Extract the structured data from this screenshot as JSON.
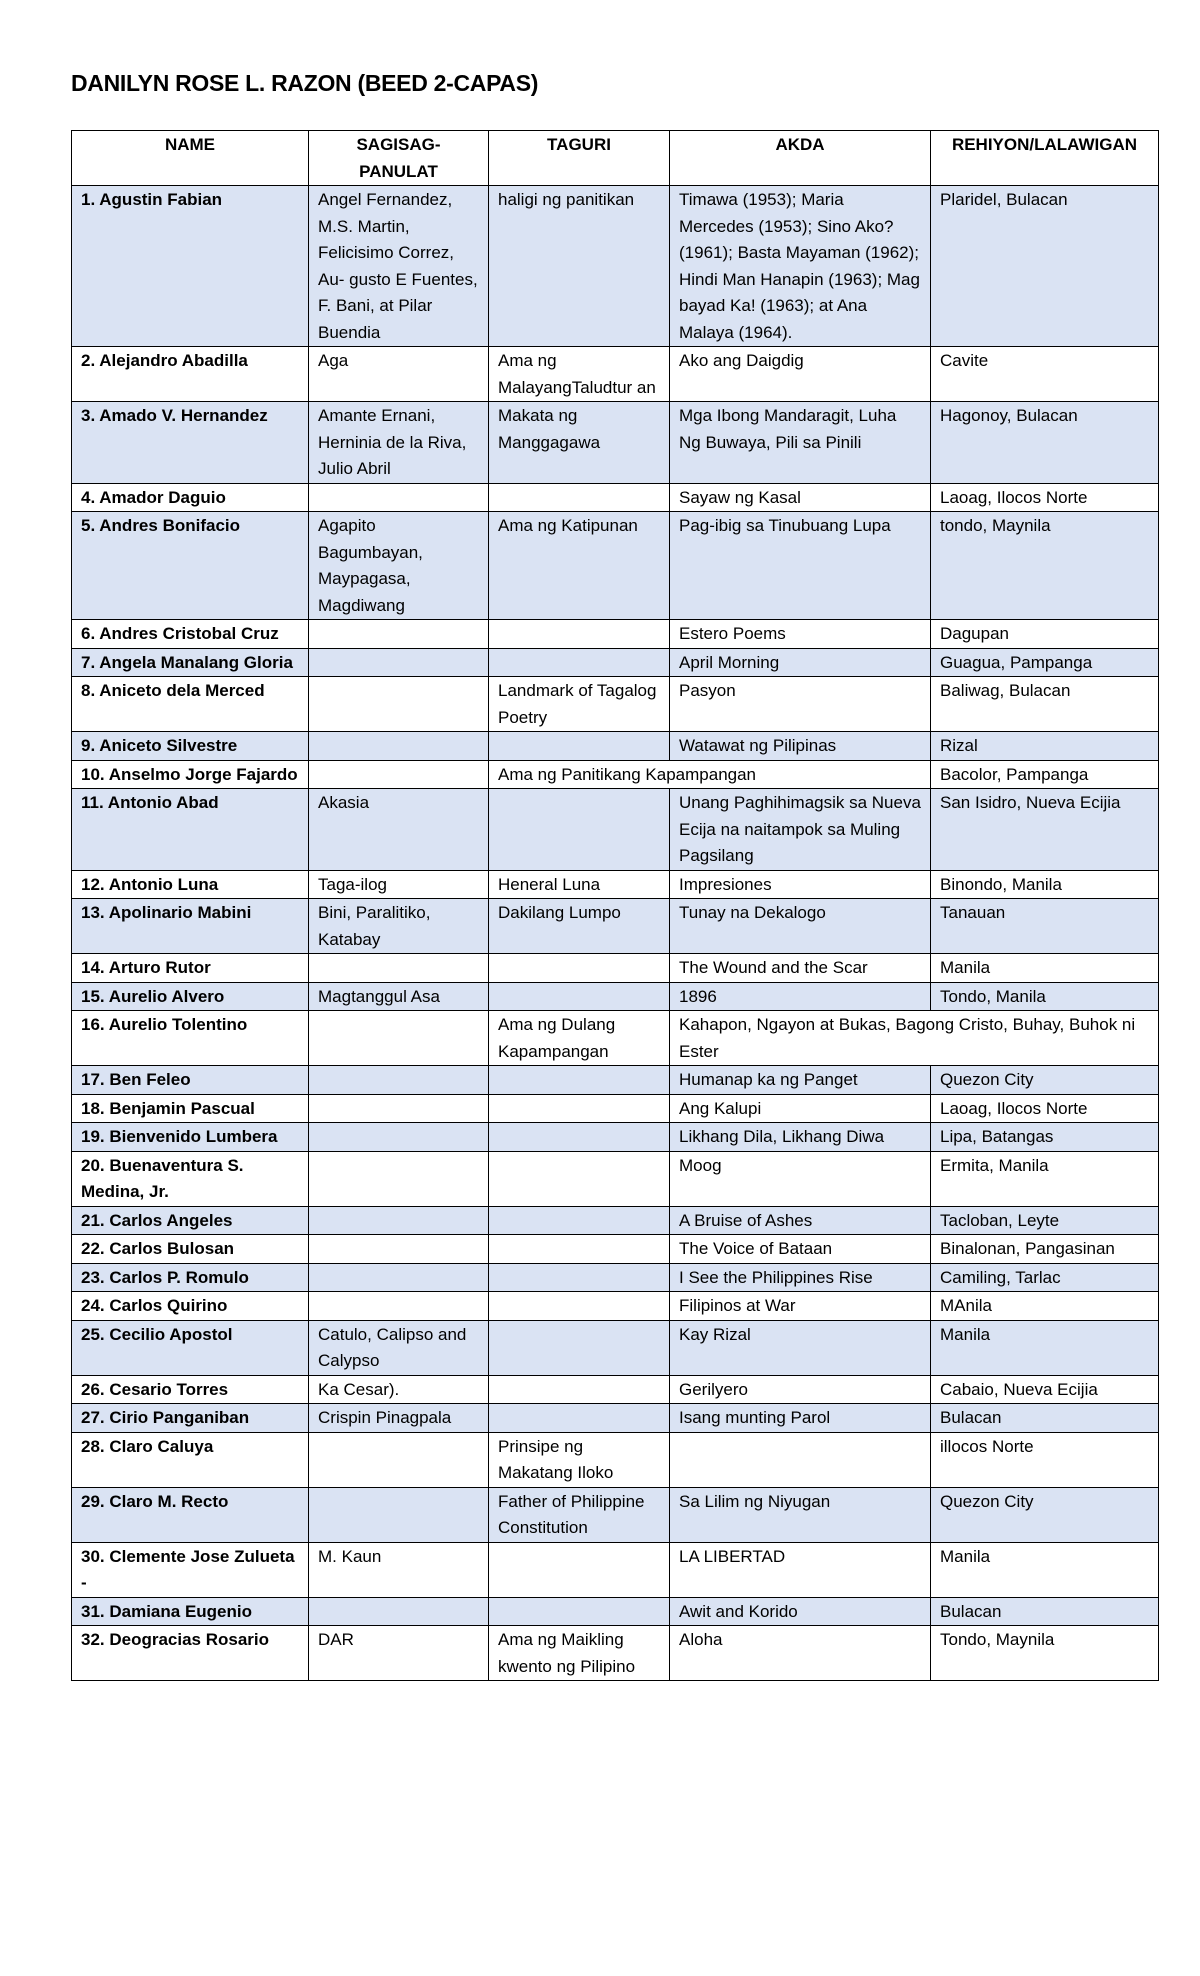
{
  "title": "DANILYN ROSE L. RAZON (BEED 2-CAPAS)",
  "colors": {
    "row_shade": "#dae3f3"
  },
  "headers": [
    "NAME",
    "SAGISAG-PANULAT",
    "TAGURI",
    "AKDA",
    "REHIYON/LALAWIGAN"
  ],
  "rows": [
    {
      "name": "1. Agustin Fabian",
      "sagisag": "Angel Fernandez, M.S. Martin, Felicisimo Correz, Au- gusto E Fuentes, F. Bani, at Pilar Buendia",
      "taguri": "haligi ng panitikan",
      "akda": "Timawa (1953); Maria Mercedes (1953); Sino Ako? (1961); Basta Mayaman (1962); Hindi Man Hanapin (1963); Mag bayad Ka! (1963); at Ana Malaya (1964).",
      "rehiyon": "Plaridel, Bulacan"
    },
    {
      "name": "2. Alejandro Abadilla",
      "sagisag": "Aga",
      "taguri": "Ama ng MalayangTaludtur an",
      "akda": "Ako ang Daigdig",
      "rehiyon": "Cavite"
    },
    {
      "name": "3. Amado V. Hernandez",
      "sagisag": "Amante Ernani, Herninia de la Riva, Julio Abril",
      "taguri": "Makata ng Manggagawa",
      "akda": "Mga Ibong Mandaragit, Luha Ng Buwaya, Pili sa Pinili",
      "rehiyon": "Hagonoy, Bulacan"
    },
    {
      "name": "4. Amador Daguio",
      "sagisag": "",
      "taguri": "",
      "akda": "Sayaw ng Kasal",
      "rehiyon": "Laoag, Ilocos Norte"
    },
    {
      "name": "5. Andres Bonifacio",
      "sagisag": "Agapito Bagumbayan, Maypagasa, Magdiwang",
      "taguri": "Ama ng Katipunan",
      "akda": "Pag-ibig sa Tinubuang Lupa",
      "rehiyon": "tondo, Maynila"
    },
    {
      "name": "6. Andres Cristobal Cruz",
      "sagisag": "",
      "taguri": "",
      "akda": "Estero Poems",
      "rehiyon": "Dagupan"
    },
    {
      "name": "7. Angela Manalang Gloria",
      "sagisag": "",
      "taguri": "",
      "akda": "April Morning",
      "rehiyon": "Guagua, Pampanga"
    },
    {
      "name": "8. Aniceto dela Merced",
      "sagisag": "",
      "taguri": "Landmark of Tagalog Poetry",
      "akda": "Pasyon",
      "rehiyon": "Baliwag, Bulacan"
    },
    {
      "name": "9. Aniceto Silvestre",
      "sagisag": "",
      "taguri": "",
      "akda": "Watawat ng Pilipinas",
      "rehiyon": "Rizal"
    },
    {
      "name": "10. Anselmo Jorge Fajardo",
      "sagisag": "",
      "taguri_akda": "Ama ng Panitikang Kapampangan",
      "rehiyon": "Bacolor, Pampanga"
    },
    {
      "name": "11. Antonio Abad",
      "sagisag": "Akasia",
      "taguri": "",
      "akda": "Unang Paghihimagsik sa Nueva Ecija na naitampok sa Muling Pagsilang",
      "rehiyon": "San Isidro, Nueva Ecijia"
    },
    {
      "name": "12. Antonio Luna",
      "sagisag": "Taga-ilog",
      "taguri": "Heneral Luna",
      "akda": "Impresiones",
      "rehiyon": "Binondo, Manila"
    },
    {
      "name": "13. Apolinario Mabini",
      "sagisag": "Bini, Paralitiko, Katabay",
      "taguri": "Dakilang Lumpo",
      "akda": "Tunay na Dekalogo",
      "rehiyon": "Tanauan"
    },
    {
      "name": "14. Arturo Rutor",
      "sagisag": "",
      "taguri": "",
      "akda": "The Wound and the Scar",
      "rehiyon": "Manila"
    },
    {
      "name": "15. Aurelio Alvero",
      "sagisag": "Magtanggul Asa",
      "taguri": "",
      "akda": "1896",
      "rehiyon": "Tondo, Manila"
    },
    {
      "name": "16. Aurelio Tolentino",
      "sagisag": "",
      "taguri": "Ama ng Dulang Kapampangan",
      "akda_rehiyon": "Kahapon, Ngayon at Bukas, Bagong Cristo, Buhay, Buhok ni Ester"
    },
    {
      "name": "17. Ben Feleo",
      "sagisag": "",
      "taguri": "",
      "akda": "Humanap ka ng Panget",
      "rehiyon": "Quezon City"
    },
    {
      "name": "18. Benjamin Pascual",
      "sagisag": "",
      "taguri": "",
      "akda": "Ang Kalupi",
      "rehiyon": "Laoag, Ilocos Norte"
    },
    {
      "name": "19. Bienvenido Lumbera",
      "sagisag": "",
      "taguri": "",
      "akda": "Likhang Dila, Likhang Diwa",
      "rehiyon": "Lipa, Batangas"
    },
    {
      "name": "20. Buenaventura S. Medina, Jr.",
      "sagisag": "",
      "taguri": "",
      "akda": "Moog",
      "rehiyon": "Ermita, Manila"
    },
    {
      "name": "21. Carlos Angeles",
      "sagisag": "",
      "taguri": "",
      "akda": "A Bruise of Ashes",
      "rehiyon": "Tacloban, Leyte"
    },
    {
      "name": "22. Carlos Bulosan",
      "sagisag": "",
      "taguri": "",
      "akda": "The Voice of Bataan",
      "rehiyon": "Binalonan, Pangasinan"
    },
    {
      "name": "23. Carlos P. Romulo",
      "sagisag": "",
      "taguri": "",
      "akda": "I See the Philippines Rise",
      "rehiyon": "Camiling, Tarlac"
    },
    {
      "name": "24. Carlos Quirino",
      "sagisag": "",
      "taguri": "",
      "akda": "Filipinos at War",
      "rehiyon": "MAnila"
    },
    {
      "name": "25. Cecilio Apostol",
      "sagisag": "Catulo, Calipso and Calypso",
      "taguri": "",
      "akda": "Kay Rizal",
      "rehiyon": "Manila"
    },
    {
      "name": "26. Cesario Torres",
      "sagisag": "Ka Cesar).",
      "taguri": "",
      "akda": "Gerilyero",
      "rehiyon": "Cabaio, Nueva Ecijia"
    },
    {
      "name": "27. Cirio Panganiban",
      "sagisag": "Crispin Pinagpala",
      "taguri": "",
      "akda": "Isang munting Parol",
      "rehiyon": "Bulacan"
    },
    {
      "name": "28. Claro Caluya",
      "sagisag": "",
      "taguri": "Prinsipe ng Makatang Iloko",
      "akda": "",
      "rehiyon": "illocos Norte"
    },
    {
      "name": "29. Claro M. Recto",
      "sagisag": "",
      "taguri": "Father of Philippine Constitution",
      "akda": "Sa Lilim ng Niyugan",
      "rehiyon": "Quezon City"
    },
    {
      "name": "30. Clemente Jose Zulueta -",
      "sagisag": "M. Kaun",
      "taguri": "",
      "akda": "LA LIBERTAD",
      "rehiyon": "Manila"
    },
    {
      "name": "31. Damiana Eugenio",
      "sagisag": "",
      "taguri": "",
      "akda": "Awit and Korido",
      "rehiyon": "Bulacan"
    },
    {
      "name": "32. Deogracias Rosario",
      "sagisag": "DAR",
      "taguri": "Ama ng Maikling kwento ng Pilipino",
      "akda": "Aloha",
      "rehiyon": "Tondo, Maynila"
    }
  ]
}
